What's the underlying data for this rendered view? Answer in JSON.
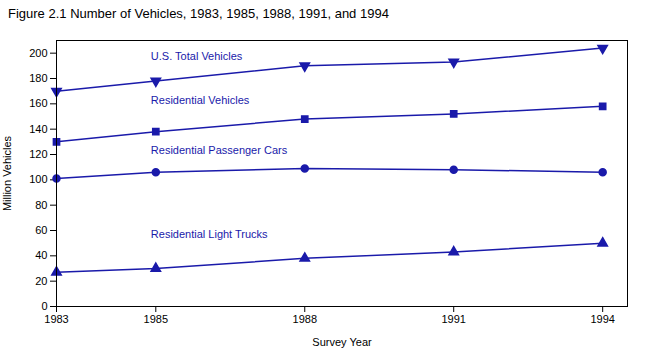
{
  "chart_data": {
    "type": "line",
    "title": "Figure 2.1  Number of Vehicles, 1983, 1985, 1988, 1991, and 1994",
    "xlabel": "Survey Year",
    "ylabel": "Million Vehicles",
    "x": [
      1983,
      1985,
      1988,
      1991,
      1994
    ],
    "series": [
      {
        "values": [
          170,
          178,
          190,
          193,
          204
        ],
        "marker": "triangle-down",
        "color": "#1a1aaa"
      },
      {
        "values": [
          130,
          138,
          148,
          152,
          158
        ],
        "marker": "square",
        "color": "#1a1aaa"
      },
      {
        "values": [
          101,
          106,
          109,
          108,
          106
        ],
        "marker": "circle",
        "color": "#1a1aaa"
      },
      {
        "values": [
          27,
          30,
          38,
          43,
          50
        ],
        "marker": "triangle-up",
        "color": "#1a1aaa"
      }
    ],
    "annotations": [
      {
        "text": "U.S. Total Vehicles",
        "x": 1984.9,
        "y": 197,
        "color": "#1a1aaa"
      },
      {
        "text": "Residential Vehicles",
        "x": 1984.9,
        "y": 163,
        "color": "#1a1aaa"
      },
      {
        "text": "Residential Passenger Cars",
        "x": 1984.9,
        "y": 123,
        "color": "#1a1aaa"
      },
      {
        "text": "Residential Light Trucks",
        "x": 1984.9,
        "y": 57,
        "color": "#1a1aaa"
      }
    ],
    "xlim": [
      1983,
      1994.5
    ],
    "xticks": [
      1983,
      1985,
      1988,
      1991,
      1994
    ],
    "ylim": [
      0,
      210
    ],
    "yticks": [
      0,
      20,
      40,
      60,
      80,
      100,
      120,
      140,
      160,
      180,
      200
    ],
    "grid": false
  }
}
